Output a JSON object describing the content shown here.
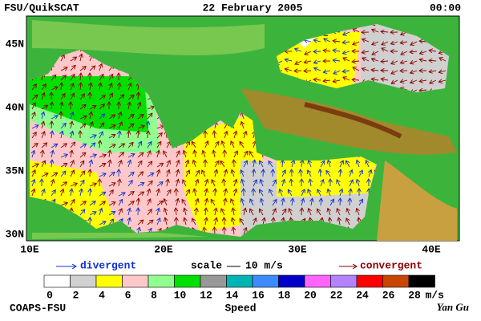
{
  "header": {
    "source": "FSU/QuikSCAT",
    "date": "22 February 2005",
    "time": "00:00"
  },
  "map": {
    "lat_labels": [
      "45N",
      "40N",
      "35N",
      "30N"
    ],
    "lon_labels": [
      "10E",
      "20E",
      "30E",
      "40E"
    ]
  },
  "legend": {
    "divergent": "divergent",
    "scale": "scale",
    "scale_value": "10 m/s",
    "convergent": "convergent"
  },
  "colorbar": {
    "ticks": [
      0,
      2,
      4,
      6,
      8,
      10,
      12,
      14,
      16,
      18,
      20,
      22,
      24,
      26,
      28
    ],
    "colors": [
      "#ffffff",
      "#d0d0d0",
      "#ffff00",
      "#ffc8c8",
      "#90ff90",
      "#00e000",
      "#989898",
      "#00b4b4",
      "#3c8cff",
      "#0000c8",
      "#ff64ff",
      "#b482ff",
      "#ff0000",
      "#c84600",
      "#000000"
    ],
    "unit": "m/s",
    "label": "Speed"
  },
  "footer": {
    "institution": "COAPS-FSU",
    "author": "Yan Gu"
  }
}
